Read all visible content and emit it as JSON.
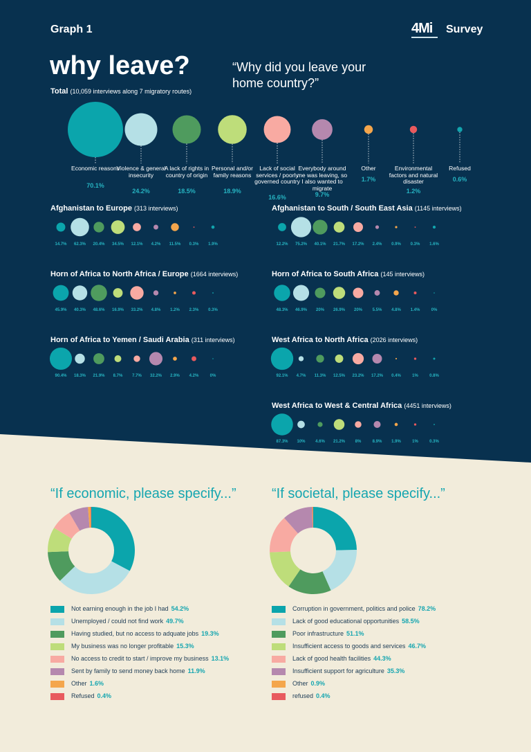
{
  "header": {
    "graph_label": "Graph 1",
    "logo": "4Mi",
    "survey_label": "Survey"
  },
  "main": {
    "headline": "why leave?",
    "question": "“Why did you leave your home country?”",
    "total_label": "Total",
    "total_note": "(10,059 interviews along 7 migratory routes)"
  },
  "colors": {
    "navy": "#08314f",
    "cream": "#f2ecdb",
    "accent_text": "#16a6b0",
    "reasons": [
      "#0ba5ac",
      "#b5e0e6",
      "#4f9b5e",
      "#bedd7a",
      "#f8aaa2",
      "#b588ae",
      "#f4a64c",
      "#e85a5e",
      "#12a4ad"
    ]
  },
  "chart_data": [
    {
      "type": "bubble",
      "title": "why leave?",
      "subtitle": "Total (10,059 interviews along 7 migratory routes)",
      "categories": [
        "Economic reasons",
        "Violence & general insecurity",
        "A lack of rights in country of origin",
        "Personal and/or family reasons",
        "Lack of social services / poorly governed country",
        "Everybody around me was leaving, so I also wanted to migrate",
        "Other",
        "Environmental factors and natural disaster",
        "Refused"
      ],
      "values": [
        70.1,
        24.2,
        18.5,
        18.9,
        16.6,
        9.7,
        1.7,
        1.2,
        0.6
      ],
      "labels": [
        "70.1%",
        "24.2%",
        "18.5%",
        "18.9%",
        "16.6%",
        "9.7%",
        "1.7%",
        "1.2%",
        "0.6%"
      ]
    },
    {
      "type": "bubble",
      "title": "Afghanistan to Europe",
      "subtitle": "(313 interviews)",
      "values": [
        14.7,
        62.3,
        20.4,
        34.5,
        12.1,
        4.2,
        11.5,
        0.3,
        1.9
      ],
      "labels": [
        "14.7%",
        "62.3%",
        "20.4%",
        "34.5%",
        "12.1%",
        "4.2%",
        "11.5%",
        "0.3%",
        "1.9%"
      ]
    },
    {
      "type": "bubble",
      "title": "Afghanistan to South / South East Asia",
      "subtitle": "(1145 interviews)",
      "values": [
        12.2,
        75.2,
        40.1,
        21.7,
        17.2,
        2.4,
        0.9,
        0.3,
        1.6
      ],
      "labels": [
        "12.2%",
        "75.2%",
        "40.1%",
        "21.7%",
        "17.2%",
        "2.4%",
        "0.9%",
        "0.3%",
        "1.6%"
      ]
    },
    {
      "type": "bubble",
      "title": "Horn of Africa to North Africa / Europe",
      "subtitle": "(1664 interviews)",
      "values": [
        45.9,
        40.3,
        48.6,
        16.9,
        33.2,
        4.8,
        1.2,
        2.3,
        0.3
      ],
      "labels": [
        "45.9%",
        "40.3%",
        "48.6%",
        "16.9%",
        "33.2%",
        "4.8%",
        "1.2%",
        "2.3%",
        "0.3%"
      ]
    },
    {
      "type": "bubble",
      "title": "Horn of Africa to South Africa",
      "subtitle": "(145 interviews)",
      "values": [
        48.3,
        46.9,
        20,
        26.9,
        20,
        5.5,
        4.8,
        1.4,
        0
      ],
      "labels": [
        "48.3%",
        "46.9%",
        "20%",
        "26.9%",
        "20%",
        "5.5%",
        "4.8%",
        "1.4%",
        "0%"
      ]
    },
    {
      "type": "bubble",
      "title": "Horn of Africa to Yemen / Saudi Arabia",
      "subtitle": "(311 interviews)",
      "values": [
        90.4,
        18.3,
        21.9,
        8.7,
        7.7,
        32.2,
        2.9,
        4.2,
        0
      ],
      "labels": [
        "90.4%",
        "18.3%",
        "21.9%",
        "8.7%",
        "7.7%",
        "32.2%",
        "2.9%",
        "4.2%",
        "0%"
      ]
    },
    {
      "type": "bubble",
      "title": "West Africa to North Africa",
      "subtitle": "(2026 interviews)",
      "values": [
        92.1,
        4.7,
        11.3,
        12.5,
        23.2,
        17.2,
        0.4,
        1,
        0.8
      ],
      "labels": [
        "92.1%",
        "4.7%",
        "11.3%",
        "12.5%",
        "23.2%",
        "17.2%",
        "0.4%",
        "1%",
        "0.8%"
      ]
    },
    {
      "type": "bubble",
      "title": "West Africa to West & Central Africa",
      "subtitle": "(4451 interviews)",
      "values": [
        87.3,
        10,
        4.6,
        21.2,
        8,
        8.9,
        1.9,
        1,
        0.3
      ],
      "labels": [
        "87.3%",
        "10%",
        "4.6%",
        "21.2%",
        "8%",
        "8.9%",
        "1.9%",
        "1%",
        "0.3%"
      ]
    },
    {
      "type": "pie",
      "title": "“If economic, please specify...”",
      "categories": [
        "Not earning enough in the job I had",
        "Unemployed / could not find work",
        "Having studied, but no access to adquate jobs",
        "My business was no longer profitable",
        "No access to credit to start / improve my business",
        "Sent by family to send money back home",
        "Other",
        "Refused"
      ],
      "values": [
        54.2,
        49.7,
        19.3,
        15.3,
        13.1,
        11.9,
        1.6,
        0.4
      ],
      "labels": [
        "54.2%",
        "49.7%",
        "19.3%",
        "15.3%",
        "13.1%",
        "11.9%",
        "1.6%",
        "0.4%"
      ],
      "colors": [
        "#0ba5ac",
        "#b5e0e6",
        "#4f9b5e",
        "#bedd7a",
        "#f8aaa2",
        "#b588ae",
        "#f4a64c",
        "#e85a5e"
      ]
    },
    {
      "type": "pie",
      "title": "“If societal, please specify...”",
      "categories": [
        "Corruption in government, politics and police",
        "Lack of good educational opportunities",
        "Poor infrastructure",
        "Insufficient access to goods and services",
        "Lack of good health facilities",
        "Insufficient support for agriculture",
        "Other",
        "refused"
      ],
      "values": [
        78.2,
        58.5,
        51.1,
        46.7,
        44.3,
        35.3,
        0.9,
        0.4
      ],
      "labels": [
        "78.2%",
        "58.5%",
        "51.1%",
        "46.7%",
        "44.3%",
        "35.3%",
        "0.9%",
        "0.4%"
      ],
      "colors": [
        "#0ba5ac",
        "#b5e0e6",
        "#4f9b5e",
        "#bedd7a",
        "#f8aaa2",
        "#b588ae",
        "#f4a64c",
        "#e85a5e"
      ]
    }
  ]
}
